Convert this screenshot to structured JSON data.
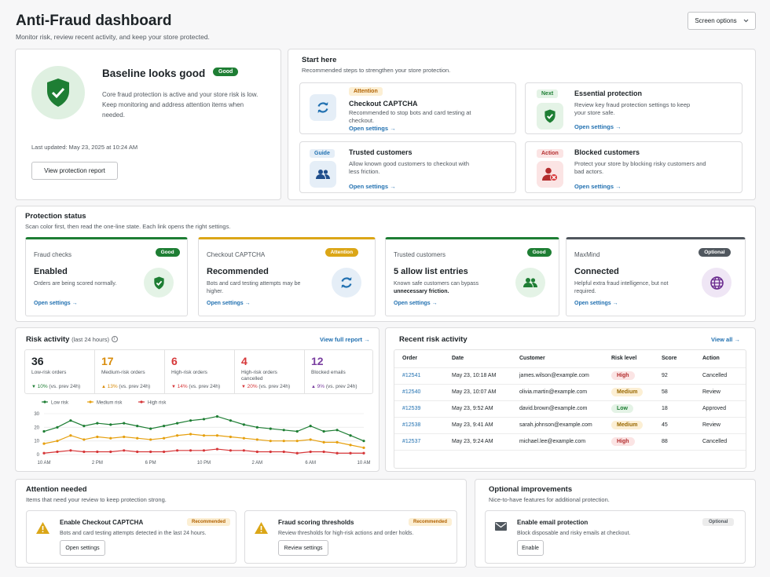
{
  "header": {
    "title": "Anti-Fraud dashboard",
    "subtitle": "Monitor risk, review recent activity, and keep your store protected.",
    "screen_options": "Screen options"
  },
  "baseline": {
    "title": "Baseline looks good",
    "badge": "Good",
    "description": "Core fraud protection is active and your store risk is low. Keep monitoring and address attention items when needed.",
    "last_updated": "Last updated: May 23, 2025 at 10:24 AM",
    "button": "View protection report"
  },
  "start_here": {
    "title": "Start here",
    "subtitle": "Recommended steps to strengthen your store protection.",
    "items": [
      {
        "tag": "Attention",
        "title": "Checkout CAPTCHA",
        "desc": "Recommended to stop bots and card testing at checkout.",
        "link": "Open settings →",
        "icon": "refresh-icon"
      },
      {
        "tag": "Next",
        "title": "Essential protection",
        "desc": "Review key fraud protection settings to keep your store safe.",
        "link": "Open settings →",
        "icon": "shield-check-icon"
      },
      {
        "tag": "Guide",
        "title": "Trusted customers",
        "desc": "Allow known good customers to checkout with less friction.",
        "link": "Open settings →",
        "icon": "users-icon"
      },
      {
        "tag": "Action",
        "title": "Blocked customers",
        "desc": "Protect your store by blocking risky customers and bad actors.",
        "link": "Open settings →",
        "icon": "blocked-user-icon"
      }
    ]
  },
  "protection": {
    "title": "Protection status",
    "subtitle": "Scan color first, then read the one-line state. Each link opens the right settings.",
    "cards": [
      {
        "label": "Fraud checks",
        "badge": "Good",
        "value": "Enabled",
        "desc": "Orders are being scored normally.",
        "desc_bold": "",
        "link": "Open settings →",
        "color": "#1e7e34"
      },
      {
        "label": "Checkout CAPTCHA",
        "badge": "Attention",
        "value": "Recommended",
        "desc": "Bots and card testing attempts may be higher.",
        "desc_bold": "",
        "link": "Open settings →",
        "color": "#dba617"
      },
      {
        "label": "Trusted customers",
        "badge": "Good",
        "value": "5 allow list entries",
        "desc": "Known safe customers can bypass",
        "desc_bold": "unnecessary friction.",
        "link": "Open settings →",
        "color": "#1e7e34"
      },
      {
        "label": "MaxMind",
        "badge": "Optional",
        "value": "Connected",
        "desc": "Helpful extra fraud intelligence, but not required.",
        "desc_bold": "",
        "link": "Open settings →",
        "color": "#50575e"
      }
    ]
  },
  "risk_activity": {
    "title": "Risk activity",
    "period": "(last 24 hours)",
    "info_icon": "info-icon",
    "report_link": "View full report →",
    "stats": [
      {
        "num": "36",
        "label": "Low-risk orders",
        "arrow": "▼",
        "pct": "10%",
        "suffix": "(vs. prev 24h)",
        "color": "#1d2327",
        "arrow_color": "#1e7e34"
      },
      {
        "num": "17",
        "label": "Medium-risk orders",
        "arrow": "▲",
        "pct": "13%",
        "suffix": "(vs. prev 24h)",
        "color": "#d98c0b",
        "arrow_color": "#d98c0b"
      },
      {
        "num": "6",
        "label": "High-risk orders",
        "arrow": "▼",
        "pct": "14%",
        "suffix": "(vs. prev 24h)",
        "color": "#d63638",
        "arrow_color": "#d63638"
      },
      {
        "num": "4",
        "label": "High-risk orders cancelled",
        "arrow": "▼",
        "pct": "20%",
        "suffix": "(vs. prev 24h)",
        "color": "#d63638",
        "arrow_color": "#d63638"
      },
      {
        "num": "12",
        "label": "Blocked emails",
        "arrow": "▲",
        "pct": "9%",
        "suffix": "(vs. prev 24h)",
        "color": "#7a3fa0",
        "arrow_color": "#7a3fa0"
      }
    ]
  },
  "chart_data": {
    "type": "line",
    "x": [
      "10 AM",
      "",
      "",
      "",
      "2 PM",
      "",
      "",
      "",
      "6 PM",
      "",
      "",
      "",
      "10 PM",
      "",
      "",
      "",
      "2 AM",
      "",
      "",
      "",
      "6 AM",
      "",
      "",
      "",
      "10 AM"
    ],
    "xticks": [
      "10 AM",
      "2 PM",
      "6 PM",
      "10 PM",
      "2 AM",
      "6 AM",
      "10 AM"
    ],
    "yticks": [
      0,
      10,
      20,
      30
    ],
    "ylim": [
      0,
      30
    ],
    "series": [
      {
        "name": "Low risk",
        "color": "#1e7e34",
        "values": [
          17,
          20,
          25,
          21,
          23,
          22,
          23,
          21,
          19,
          21,
          23,
          25,
          26,
          28,
          25,
          22,
          20,
          19,
          18,
          17,
          21,
          17,
          18,
          14,
          10
        ]
      },
      {
        "name": "Medium risk",
        "color": "#e6a00f",
        "values": [
          8,
          10,
          14,
          11,
          13,
          12,
          13,
          12,
          11,
          12,
          14,
          15,
          14,
          14,
          13,
          12,
          11,
          10,
          10,
          10,
          11,
          9,
          9,
          7,
          5
        ]
      },
      {
        "name": "High risk",
        "color": "#d63638",
        "values": [
          1,
          2,
          3,
          2,
          2,
          2,
          3,
          2,
          2,
          2,
          3,
          3,
          3,
          4,
          3,
          3,
          2,
          2,
          2,
          1,
          2,
          2,
          1,
          1,
          1
        ]
      }
    ]
  },
  "recent": {
    "title": "Recent risk activity",
    "view_all": "View all →",
    "columns": [
      "Order",
      "Date",
      "Customer",
      "Risk level",
      "Score",
      "Action"
    ],
    "rows": [
      {
        "order": "#12541",
        "date": "May 23, 10:18 AM",
        "customer": "james.wilson@example.com",
        "risk": "High",
        "score": "92",
        "action": "Cancelled"
      },
      {
        "order": "#12540",
        "date": "May 23, 10:07 AM",
        "customer": "olivia.martin@example.com",
        "risk": "Medium",
        "score": "58",
        "action": "Review"
      },
      {
        "order": "#12539",
        "date": "May 23, 9:52 AM",
        "customer": "david.brown@example.com",
        "risk": "Low",
        "score": "18",
        "action": "Approved"
      },
      {
        "order": "#12538",
        "date": "May 23, 9:41 AM",
        "customer": "sarah.johnson@example.com",
        "risk": "Medium",
        "score": "45",
        "action": "Review"
      },
      {
        "order": "#12537",
        "date": "May 23, 9:24 AM",
        "customer": "michael.lee@example.com",
        "risk": "High",
        "score": "88",
        "action": "Cancelled"
      }
    ]
  },
  "attention": {
    "title": "Attention needed",
    "subtitle": "Items that need your review to keep protection strong.",
    "items": [
      {
        "title": "Enable Checkout CAPTCHA",
        "tag": "Recommended",
        "desc": "Bots and card testing attempts detected in the last 24 hours.",
        "button": "Open settings",
        "icon": "warning-icon"
      },
      {
        "title": "Fraud scoring thresholds",
        "tag": "Recommended",
        "desc": "Review thresholds for high-risk actions and order holds.",
        "button": "Review settings",
        "icon": "warning-icon"
      }
    ]
  },
  "optional": {
    "title": "Optional improvements",
    "subtitle": "Nice-to-have features for additional protection.",
    "item": {
      "title": "Enable email protection",
      "tag": "Optional",
      "desc": "Block disposable and risky emails at checkout.",
      "button": "Enable",
      "icon": "mail-icon"
    }
  }
}
